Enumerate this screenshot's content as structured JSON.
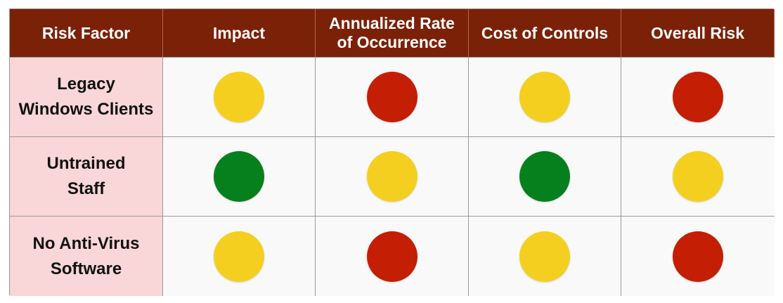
{
  "table": {
    "headers": [
      "Risk Factor",
      "Impact",
      "Annualized Rate\nof Occurrence",
      "Cost of Controls",
      "Overall Risk"
    ],
    "rows": [
      {
        "label": "Legacy\nWindows Clients",
        "ratings": [
          "yellow",
          "red",
          "yellow",
          "red"
        ]
      },
      {
        "label": "Untrained\nStaff",
        "ratings": [
          "green",
          "yellow",
          "green",
          "yellow"
        ]
      },
      {
        "label": "No Anti-Virus\nSoftware",
        "ratings": [
          "yellow",
          "red",
          "yellow",
          "red"
        ]
      }
    ]
  },
  "colors": {
    "header_bg": "#7a2108",
    "row_header_bg": "#f9d6d7",
    "yellow": "#f4cf1f",
    "red": "#c41e05",
    "green": "#05801c"
  }
}
